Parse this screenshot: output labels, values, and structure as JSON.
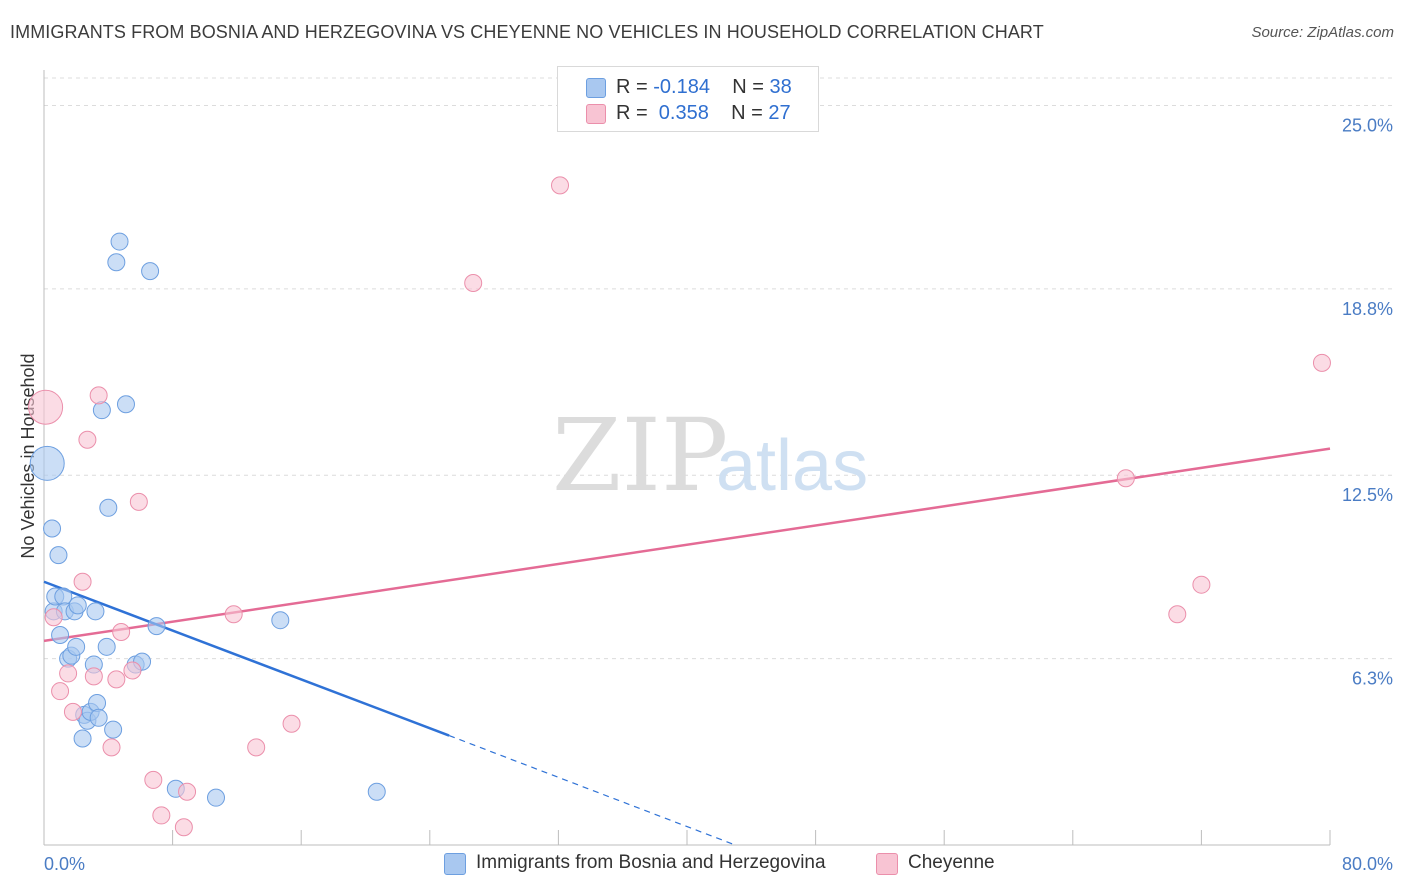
{
  "title": "IMMIGRANTS FROM BOSNIA AND HERZEGOVINA VS CHEYENNE NO VEHICLES IN HOUSEHOLD CORRELATION CHART",
  "source": "Source: ZipAtlas.com",
  "watermark": {
    "zip": "ZIP",
    "atlas": "atlas"
  },
  "legend": {
    "rows": [
      {
        "r_label": "R = ",
        "r_value": "-0.184",
        "n_label": "N = ",
        "n_value": "38",
        "color": "#a9c8f0"
      },
      {
        "r_label": "R = ",
        "r_value": " 0.358",
        "n_label": "N = ",
        "n_value": "27",
        "color": "#f6b9cb"
      }
    ]
  },
  "bottom_legend": {
    "series1": "Immigrants from Bosnia and Herzegovina",
    "series2": "Cheyenne"
  },
  "colors": {
    "blue_fill": "#a9c8f0",
    "blue_stroke": "#6d9fe0",
    "blue_line": "#2f72d6",
    "pink_fill": "#f8c4d3",
    "pink_stroke": "#eb8fab",
    "pink_line": "#e46b95",
    "grid": "#dcdcdc",
    "tick_text": "#4a7cc4"
  },
  "chart_data": {
    "type": "scatter",
    "title": "IMMIGRANTS FROM BOSNIA AND HERZEGOVINA VS CHEYENNE NO VEHICLES IN HOUSEHOLD CORRELATION CHART",
    "xlabel": "",
    "ylabel": "No Vehicles in Household",
    "xlim": [
      0,
      80
    ],
    "ylim": [
      0,
      26.2
    ],
    "x_tick_labels": [
      "0.0%",
      "80.0%"
    ],
    "y_ticks": [
      6.3,
      12.5,
      18.8,
      25.0
    ],
    "y_tick_labels": [
      "6.3%",
      "12.5%",
      "18.8%",
      "25.0%"
    ],
    "series": [
      {
        "name": "Immigrants from Bosnia and Herzegovina",
        "R": -0.184,
        "N": 38,
        "points": [
          [
            0.2,
            12.9,
            "big"
          ],
          [
            0.5,
            10.7
          ],
          [
            0.6,
            7.9
          ],
          [
            0.7,
            8.4
          ],
          [
            0.9,
            9.8
          ],
          [
            1.0,
            7.1
          ],
          [
            1.2,
            8.4
          ],
          [
            1.3,
            7.9
          ],
          [
            1.5,
            6.3
          ],
          [
            1.7,
            6.4
          ],
          [
            1.9,
            7.9
          ],
          [
            2.0,
            6.7
          ],
          [
            2.1,
            8.1
          ],
          [
            2.4,
            3.6
          ],
          [
            2.5,
            4.4
          ],
          [
            2.7,
            4.2
          ],
          [
            2.9,
            4.5
          ],
          [
            3.1,
            6.1
          ],
          [
            3.2,
            7.9
          ],
          [
            3.3,
            4.8
          ],
          [
            3.4,
            4.3
          ],
          [
            3.6,
            14.7
          ],
          [
            3.9,
            6.7
          ],
          [
            4.0,
            11.4
          ],
          [
            4.3,
            3.9
          ],
          [
            4.5,
            19.7
          ],
          [
            4.7,
            20.4
          ],
          [
            5.1,
            14.9
          ],
          [
            5.7,
            6.1
          ],
          [
            6.1,
            6.2
          ],
          [
            6.6,
            19.4
          ],
          [
            7.0,
            7.4
          ],
          [
            8.2,
            1.9
          ],
          [
            10.7,
            1.6
          ],
          [
            14.7,
            7.6
          ],
          [
            20.7,
            1.8
          ]
        ],
        "trend": {
          "x0": 0,
          "y0": 8.9,
          "x1": 25.2,
          "y1": 3.7,
          "dash_to_x": 43.0,
          "dash_to_y": 0.0
        }
      },
      {
        "name": "Cheyenne",
        "R": 0.358,
        "N": 27,
        "points": [
          [
            0.1,
            14.8,
            "big"
          ],
          [
            0.6,
            7.7
          ],
          [
            1.0,
            5.2
          ],
          [
            1.5,
            5.8
          ],
          [
            1.8,
            4.5
          ],
          [
            2.4,
            8.9
          ],
          [
            2.7,
            13.7
          ],
          [
            3.1,
            5.7
          ],
          [
            3.4,
            15.2
          ],
          [
            4.2,
            3.3
          ],
          [
            4.5,
            5.6
          ],
          [
            4.8,
            7.2
          ],
          [
            5.5,
            5.9
          ],
          [
            5.9,
            11.6
          ],
          [
            6.8,
            2.2
          ],
          [
            7.3,
            1.0
          ],
          [
            8.7,
            0.6
          ],
          [
            8.9,
            1.8
          ],
          [
            11.8,
            7.8
          ],
          [
            13.2,
            3.3
          ],
          [
            15.4,
            4.1
          ],
          [
            26.7,
            19.0
          ],
          [
            32.1,
            22.3
          ],
          [
            67.3,
            12.4
          ],
          [
            70.5,
            7.8
          ],
          [
            72.0,
            8.8
          ],
          [
            79.5,
            16.3
          ]
        ],
        "trend": {
          "x0": 0,
          "y0": 6.9,
          "x1": 80,
          "y1": 13.4
        }
      }
    ]
  }
}
